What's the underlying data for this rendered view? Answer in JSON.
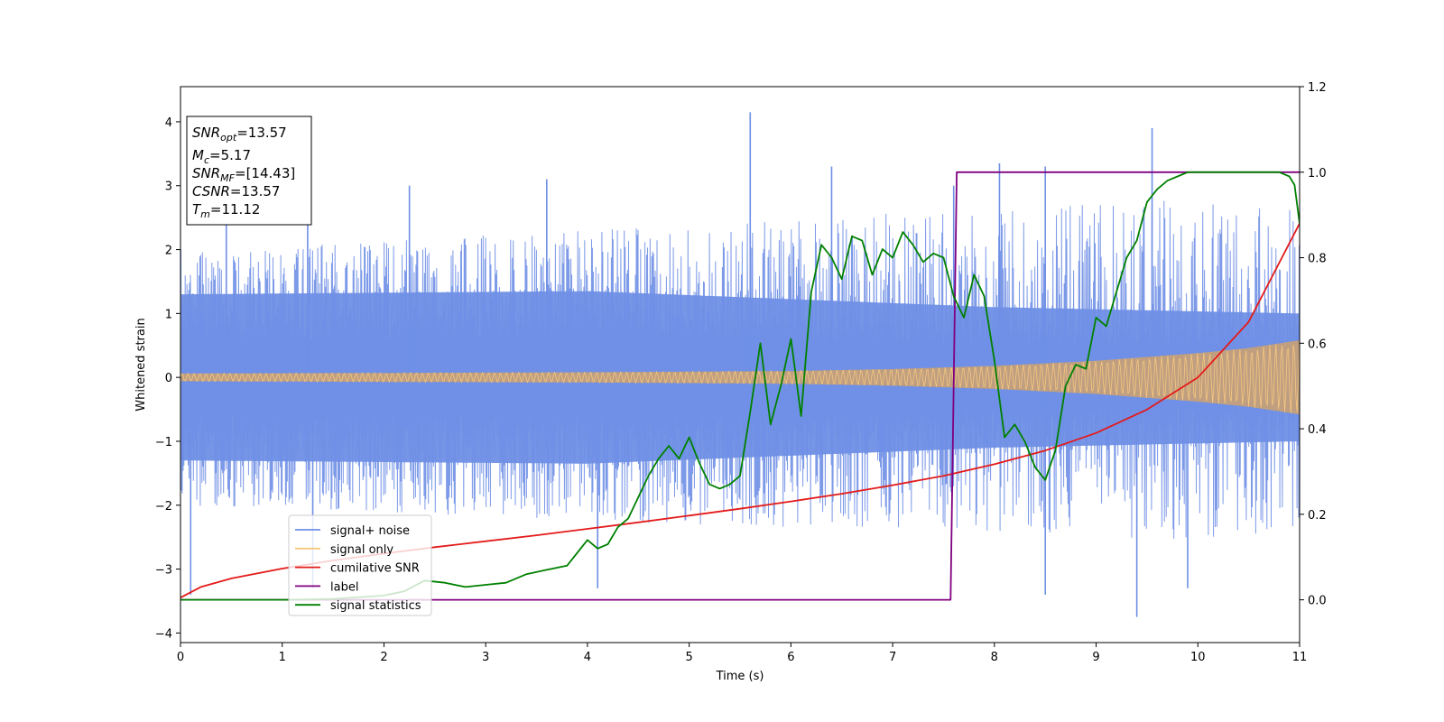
{
  "chart_data": {
    "type": "line",
    "xlabel": "Time (s)",
    "ylabel": "Whitened strain",
    "xlim": [
      0,
      11
    ],
    "ylim_left": [
      -4.15,
      4.55
    ],
    "ylim_right": [
      -0.1,
      1.2
    ],
    "x_ticks": [
      "0",
      "1",
      "2",
      "3",
      "4",
      "5",
      "6",
      "7",
      "8",
      "9",
      "10",
      "11"
    ],
    "y_left_ticks": [
      "−4",
      "−3",
      "−2",
      "−1",
      "0",
      "1",
      "2",
      "3",
      "4"
    ],
    "y_right_ticks": [
      "0.0",
      "0.2",
      "0.4",
      "0.6",
      "0.8",
      "1.0",
      "1.2"
    ],
    "annotation": {
      "lines": [
        {
          "base": "SNR",
          "sub": "opt",
          "value": "=13.57"
        },
        {
          "base": "M",
          "sub": "c",
          "value": "=5.17"
        },
        {
          "base": "SNR",
          "sub": "MF",
          "value": "=[14.43]"
        },
        {
          "base": "CSNR",
          "sub": "",
          "value": "=13.57"
        },
        {
          "base": "T",
          "sub": "m",
          "value": "=11.12"
        }
      ]
    },
    "legend": {
      "position": "lower-left",
      "entries": [
        {
          "label": "signal+ noise",
          "color": "#6f8fe6"
        },
        {
          "label": "signal only",
          "color": "#f5c77e"
        },
        {
          "label": "cumilative SNR",
          "color": "#e41a1a"
        },
        {
          "label": "label",
          "color": "#800080"
        },
        {
          "label": "signal statistics",
          "color": "#008000"
        }
      ]
    },
    "series": [
      {
        "name": "signal+ noise",
        "axis": "left",
        "color": "#6f8fe6",
        "description_values": {
          "envelope_upper": [
            [
              0,
              2.0
            ],
            [
              5,
              2.4
            ],
            [
              11,
              2.9
            ]
          ],
          "envelope_lower": [
            [
              0,
              -2.0
            ],
            [
              5,
              -2.3
            ],
            [
              11,
              -2.6
            ]
          ],
          "dense_band": [
            [
              0,
              1.3,
              -1.3
            ],
            [
              4,
              1.35,
              -1.35
            ],
            [
              8,
              1.1,
              -1.1
            ],
            [
              11,
              1.0,
              -1.0
            ]
          ],
          "spikes": [
            [
              0.45,
              3.05
            ],
            [
              1.25,
              3.0
            ],
            [
              2.25,
              3.0
            ],
            [
              3.6,
              3.1
            ],
            [
              5.6,
              4.15
            ],
            [
              6.4,
              3.3
            ],
            [
              7.6,
              3.0
            ],
            [
              8.05,
              3.35
            ],
            [
              8.5,
              3.3
            ],
            [
              9.55,
              3.9
            ],
            [
              9.4,
              -3.75
            ],
            [
              4.1,
              -3.3
            ],
            [
              8.5,
              -3.4
            ],
            [
              0.1,
              -3.4
            ],
            [
              1.3,
              -3.3
            ],
            [
              9.9,
              -3.3
            ]
          ]
        }
      },
      {
        "name": "signal only",
        "axis": "left",
        "color": "#f5c77e",
        "amplitude": [
          [
            0,
            0.06
          ],
          [
            2,
            0.07
          ],
          [
            4,
            0.08
          ],
          [
            6,
            0.1
          ],
          [
            7,
            0.13
          ],
          [
            8,
            0.18
          ],
          [
            9,
            0.26
          ],
          [
            10,
            0.38
          ],
          [
            10.5,
            0.46
          ],
          [
            11,
            0.58
          ]
        ]
      },
      {
        "name": "cumilative SNR",
        "axis": "right",
        "color": "#e41a1a",
        "x": [
          0,
          0.2,
          0.5,
          1,
          1.5,
          2,
          2.5,
          3,
          3.5,
          4,
          4.5,
          5,
          5.5,
          6,
          6.5,
          7,
          7.5,
          8,
          8.5,
          9,
          9.5,
          10,
          10.5,
          11
        ],
        "values": [
          0.005,
          0.03,
          0.05,
          0.073,
          0.092,
          0.108,
          0.123,
          0.137,
          0.151,
          0.166,
          0.181,
          0.197,
          0.213,
          0.23,
          0.248,
          0.268,
          0.29,
          0.317,
          0.349,
          0.39,
          0.445,
          0.52,
          0.65,
          0.88
        ]
      },
      {
        "name": "label",
        "axis": "right",
        "color": "#800080",
        "x": [
          0,
          7.57,
          7.63,
          11
        ],
        "values": [
          0,
          0,
          1,
          1
        ]
      },
      {
        "name": "signal statistics",
        "axis": "right",
        "color": "#008000",
        "x": [
          0,
          0.5,
          1,
          1.5,
          2,
          2.2,
          2.4,
          2.6,
          2.8,
          3,
          3.2,
          3.4,
          3.6,
          3.8,
          4,
          4.1,
          4.2,
          4.3,
          4.4,
          4.5,
          4.6,
          4.7,
          4.8,
          4.9,
          5,
          5.1,
          5.2,
          5.3,
          5.4,
          5.5,
          5.6,
          5.7,
          5.8,
          5.9,
          6,
          6.1,
          6.2,
          6.3,
          6.4,
          6.5,
          6.6,
          6.7,
          6.8,
          6.9,
          7,
          7.1,
          7.2,
          7.3,
          7.4,
          7.5,
          7.6,
          7.7,
          7.8,
          7.9,
          8,
          8.1,
          8.2,
          8.3,
          8.4,
          8.5,
          8.6,
          8.7,
          8.8,
          8.9,
          9,
          9.1,
          9.2,
          9.3,
          9.4,
          9.5,
          9.6,
          9.7,
          9.8,
          9.9,
          10,
          10.2,
          10.4,
          10.6,
          10.8,
          10.9,
          10.95,
          11
        ],
        "values": [
          0,
          0,
          0,
          0.002,
          0.01,
          0.02,
          0.045,
          0.04,
          0.03,
          0.035,
          0.04,
          0.06,
          0.07,
          0.08,
          0.14,
          0.12,
          0.13,
          0.17,
          0.19,
          0.24,
          0.29,
          0.33,
          0.36,
          0.33,
          0.38,
          0.32,
          0.27,
          0.26,
          0.27,
          0.29,
          0.44,
          0.6,
          0.41,
          0.5,
          0.61,
          0.43,
          0.72,
          0.83,
          0.8,
          0.75,
          0.85,
          0.84,
          0.76,
          0.82,
          0.8,
          0.86,
          0.83,
          0.79,
          0.81,
          0.8,
          0.71,
          0.66,
          0.76,
          0.71,
          0.56,
          0.38,
          0.41,
          0.37,
          0.31,
          0.28,
          0.35,
          0.5,
          0.55,
          0.54,
          0.66,
          0.64,
          0.72,
          0.8,
          0.84,
          0.93,
          0.96,
          0.98,
          0.99,
          1.0,
          1.0,
          1.0,
          1.0,
          1.0,
          1.0,
          0.99,
          0.97,
          0.88
        ]
      }
    ]
  }
}
